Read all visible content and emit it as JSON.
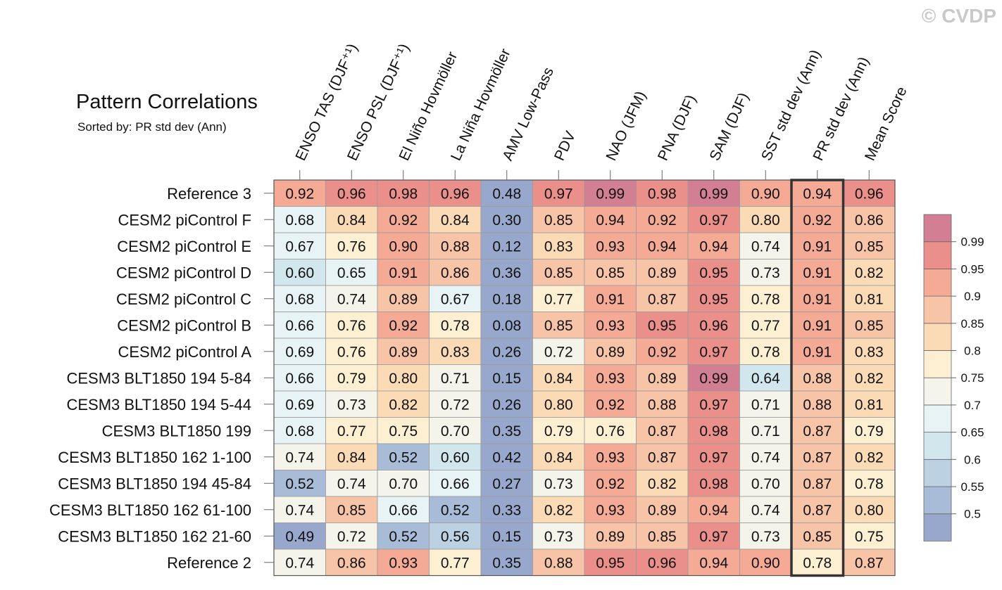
{
  "watermark": "© CVDP",
  "chart_data": {
    "type": "heatmap",
    "title": "Pattern Correlations",
    "subtitle": "Sorted by: PR std dev (Ann)",
    "columns": [
      "ENSO TAS (DJF⁺¹)",
      "ENSO PSL (DJF⁺¹)",
      "El Niño Hovmöller",
      "La Niña Hovmöller",
      "AMV Low-Pass",
      "PDV",
      "NAO (JFM)",
      "PNA (DJF)",
      "SAM (DJF)",
      "SST std dev (Ann)",
      "PR std dev (Ann)",
      "Mean Score"
    ],
    "rows": [
      "Reference 3",
      "CESM2 piControl F",
      "CESM2 piControl E",
      "CESM2 piControl D",
      "CESM2 piControl C",
      "CESM2 piControl B",
      "CESM2 piControl A",
      "CESM3 BLT1850 194 5-84",
      "CESM3 BLT1850 194 5-44",
      "CESM3 BLT1850 199",
      "CESM3 BLT1850 162 1-100",
      "CESM3 BLT1850 194 45-84",
      "CESM3 BLT1850 162 61-100",
      "CESM3 BLT1850 162 21-60",
      "Reference 2"
    ],
    "values": [
      [
        "0.92",
        "0.96",
        "0.98",
        "0.96",
        "0.48",
        "0.97",
        "0.99",
        "0.98",
        "0.99",
        "0.90",
        "0.94",
        "0.96"
      ],
      [
        "0.68",
        "0.84",
        "0.92",
        "0.84",
        "0.30",
        "0.85",
        "0.94",
        "0.92",
        "0.97",
        "0.80",
        "0.92",
        "0.86"
      ],
      [
        "0.67",
        "0.76",
        "0.90",
        "0.88",
        "0.12",
        "0.83",
        "0.93",
        "0.94",
        "0.94",
        "0.74",
        "0.91",
        "0.85"
      ],
      [
        "0.60",
        "0.65",
        "0.91",
        "0.86",
        "0.36",
        "0.85",
        "0.85",
        "0.89",
        "0.95",
        "0.73",
        "0.91",
        "0.82"
      ],
      [
        "0.68",
        "0.74",
        "0.89",
        "0.67",
        "0.18",
        "0.77",
        "0.91",
        "0.87",
        "0.95",
        "0.78",
        "0.91",
        "0.81"
      ],
      [
        "0.66",
        "0.76",
        "0.92",
        "0.78",
        "0.08",
        "0.85",
        "0.93",
        "0.95",
        "0.96",
        "0.77",
        "0.91",
        "0.85"
      ],
      [
        "0.69",
        "0.76",
        "0.89",
        "0.83",
        "0.26",
        "0.72",
        "0.89",
        "0.92",
        "0.97",
        "0.78",
        "0.91",
        "0.83"
      ],
      [
        "0.66",
        "0.79",
        "0.80",
        "0.71",
        "0.15",
        "0.84",
        "0.93",
        "0.89",
        "0.99",
        "0.64",
        "0.88",
        "0.82"
      ],
      [
        "0.69",
        "0.73",
        "0.82",
        "0.72",
        "0.26",
        "0.80",
        "0.92",
        "0.88",
        "0.97",
        "0.71",
        "0.88",
        "0.81"
      ],
      [
        "0.68",
        "0.77",
        "0.75",
        "0.70",
        "0.35",
        "0.79",
        "0.76",
        "0.87",
        "0.98",
        "0.71",
        "0.87",
        "0.79"
      ],
      [
        "0.74",
        "0.84",
        "0.52",
        "0.60",
        "0.42",
        "0.84",
        "0.93",
        "0.87",
        "0.97",
        "0.74",
        "0.87",
        "0.82"
      ],
      [
        "0.52",
        "0.74",
        "0.70",
        "0.66",
        "0.27",
        "0.73",
        "0.92",
        "0.82",
        "0.98",
        "0.70",
        "0.87",
        "0.78"
      ],
      [
        "0.74",
        "0.85",
        "0.66",
        "0.52",
        "0.33",
        "0.82",
        "0.93",
        "0.89",
        "0.94",
        "0.74",
        "0.87",
        "0.80"
      ],
      [
        "0.49",
        "0.72",
        "0.52",
        "0.56",
        "0.15",
        "0.73",
        "0.89",
        "0.85",
        "0.97",
        "0.73",
        "0.85",
        "0.75"
      ],
      [
        "0.74",
        "0.86",
        "0.93",
        "0.77",
        "0.35",
        "0.88",
        "0.95",
        "0.96",
        "0.94",
        "0.90",
        "0.78",
        "0.87"
      ]
    ],
    "sorted_by": "PR std dev (Ann)",
    "colorbar": {
      "levels": [
        "0.5",
        "0.55",
        "0.6",
        "0.65",
        "0.7",
        "0.75",
        "0.8",
        "0.85",
        "0.9",
        "0.95",
        "0.99"
      ],
      "colors": [
        "#98a8cd",
        "#a8bcd8",
        "#bcd2e3",
        "#d2e6ee",
        "#e7f3f5",
        "#f4f4ea",
        "#fdf0d2",
        "#fbdbb6",
        "#f7c4a7",
        "#f4aa95",
        "#ea8f8a",
        "#d37f93"
      ]
    }
  }
}
